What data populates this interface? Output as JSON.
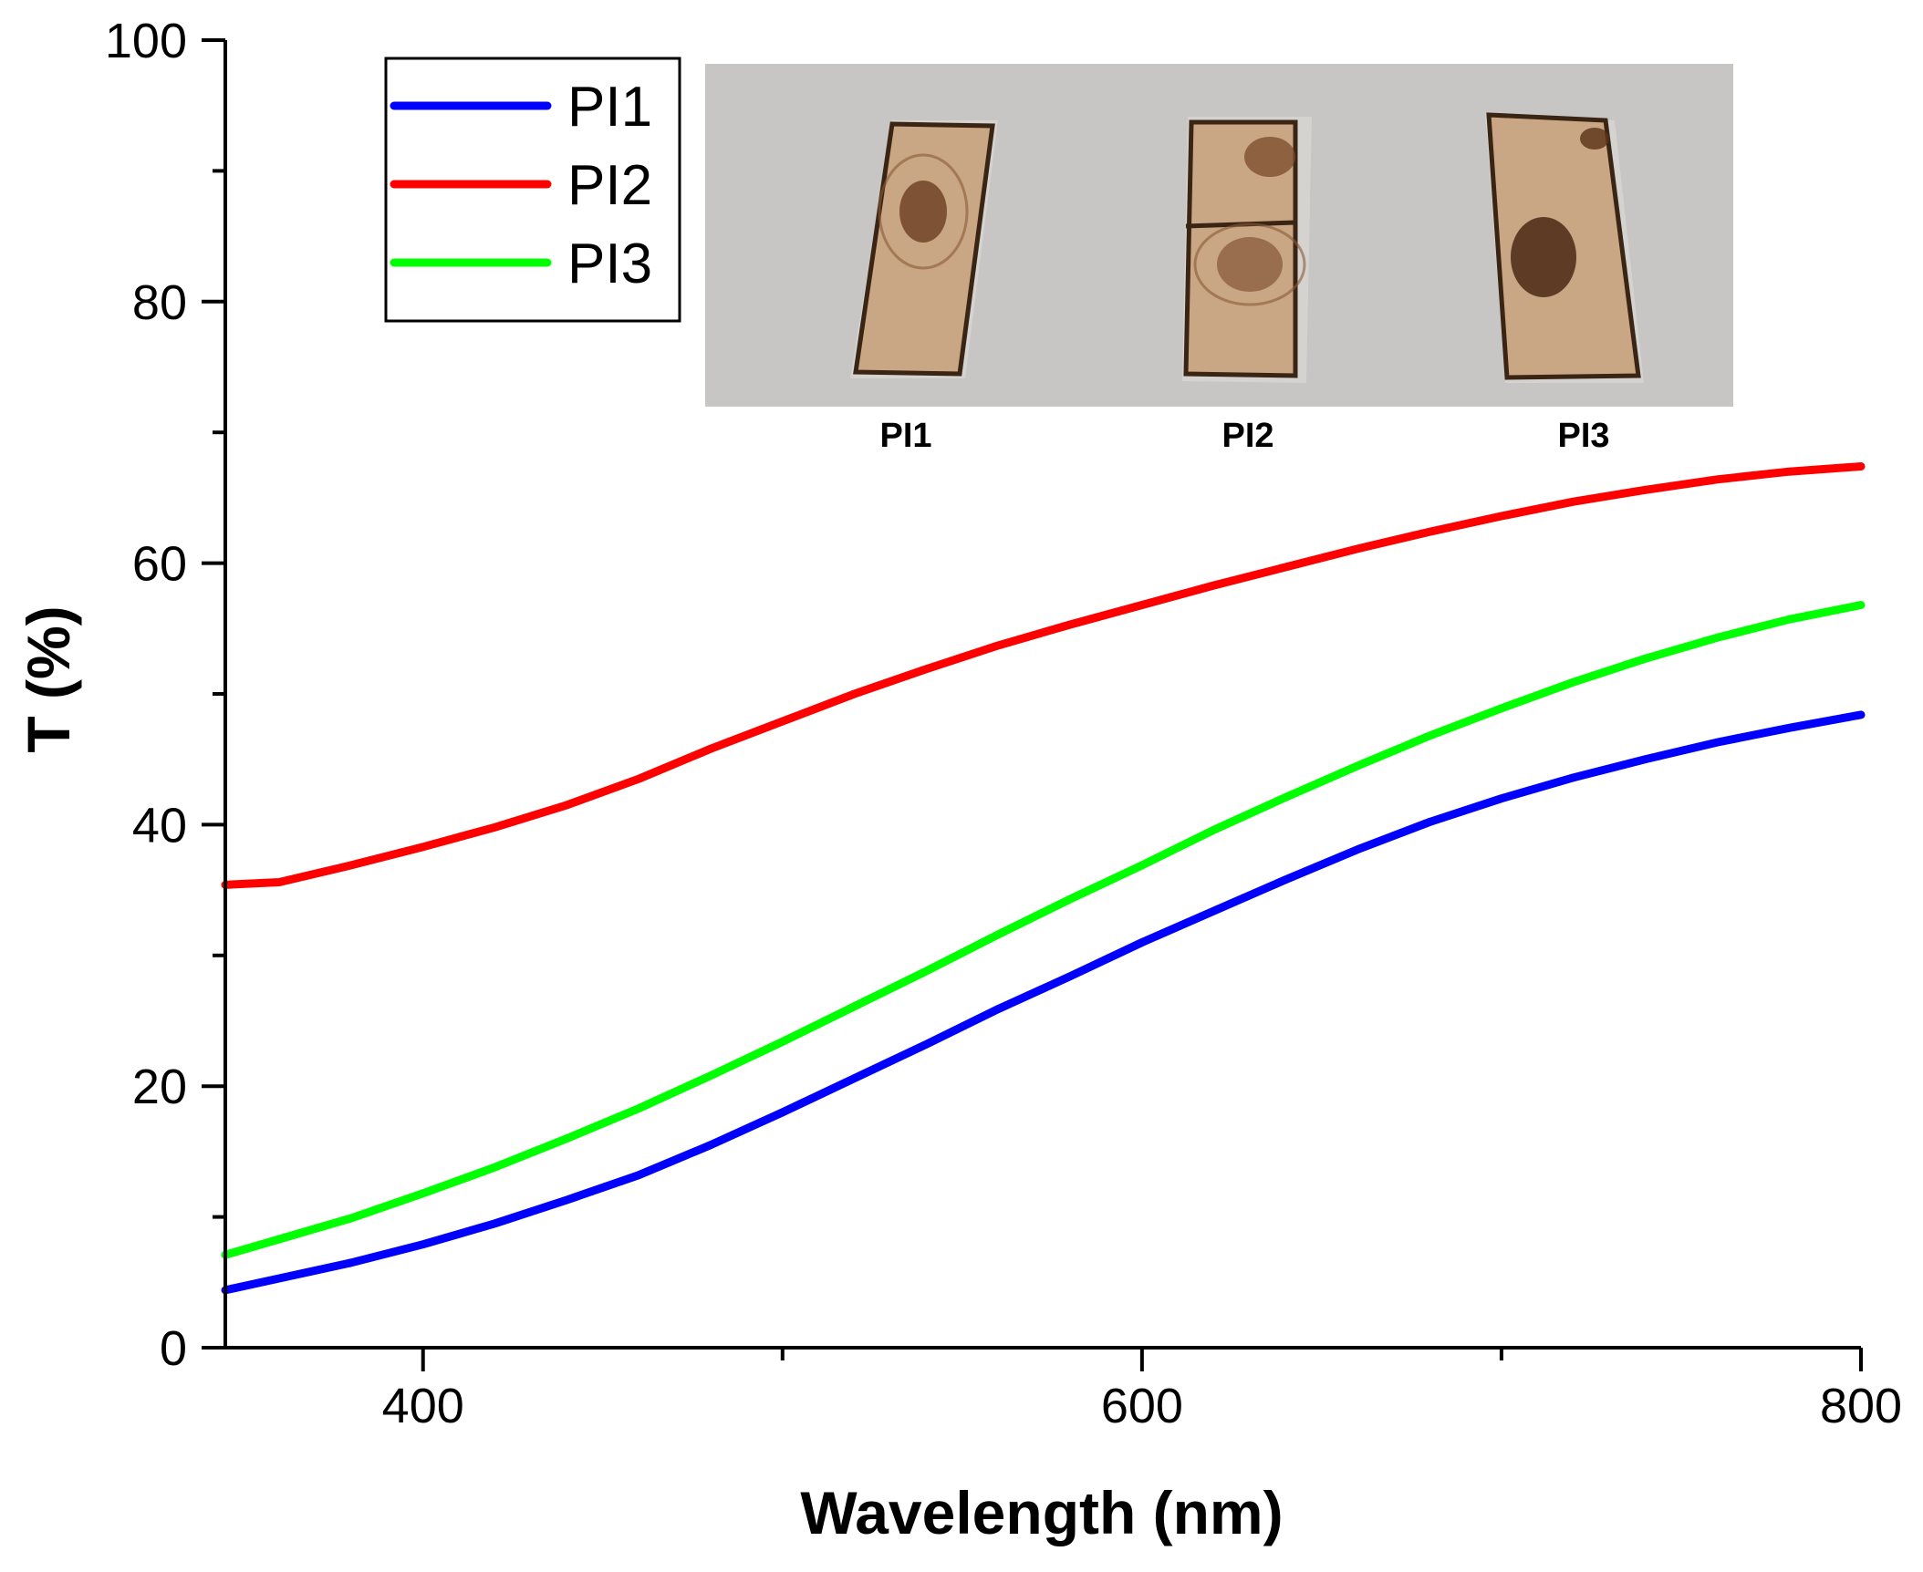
{
  "chart_data": {
    "type": "line",
    "title": "",
    "xlabel": "Wavelength (nm)",
    "ylabel": "T (%)",
    "xlim": [
      345,
      800
    ],
    "ylim": [
      0,
      100
    ],
    "x_ticks": [
      400,
      600,
      800
    ],
    "x_minor_ticks": [
      500,
      700
    ],
    "y_ticks": [
      0,
      20,
      40,
      60,
      80,
      100
    ],
    "y_minor_ticks": [
      10,
      30,
      50,
      70,
      90
    ],
    "grid": false,
    "legend_position": "top-left",
    "x": [
      345,
      360,
      380,
      400,
      420,
      440,
      460,
      480,
      500,
      520,
      540,
      560,
      580,
      600,
      620,
      640,
      660,
      680,
      700,
      720,
      740,
      760,
      780,
      800
    ],
    "series": [
      {
        "name": "PI1",
        "color": "#0000ff",
        "values": [
          4.4,
          5.3,
          6.5,
          7.9,
          9.5,
          11.3,
          13.2,
          15.5,
          18.0,
          20.6,
          23.2,
          25.9,
          28.4,
          31.0,
          33.4,
          35.8,
          38.1,
          40.2,
          42.0,
          43.6,
          45.0,
          46.3,
          47.4,
          48.4
        ]
      },
      {
        "name": "PI2",
        "color": "#ff0000",
        "values": [
          35.4,
          35.6,
          36.9,
          38.3,
          39.8,
          41.5,
          43.5,
          45.8,
          47.9,
          50.0,
          51.9,
          53.7,
          55.3,
          56.8,
          58.3,
          59.7,
          61.1,
          62.4,
          63.6,
          64.7,
          65.6,
          66.4,
          67.0,
          67.4
        ]
      },
      {
        "name": "PI3",
        "color": "#00ff00",
        "values": [
          7.1,
          8.3,
          9.9,
          11.8,
          13.8,
          16.0,
          18.3,
          20.8,
          23.4,
          26.1,
          28.8,
          31.6,
          34.3,
          36.9,
          39.6,
          42.1,
          44.5,
          46.8,
          48.9,
          50.9,
          52.7,
          54.3,
          55.7,
          56.8
        ]
      }
    ],
    "inset": {
      "description_labels": [
        "PI1",
        "PI2",
        "PI3"
      ]
    }
  },
  "colors": {
    "inset_background": "#c7c6c4",
    "film_fill": "#c9a684",
    "film_edge": "#3a2414",
    "glass": "#d6d4d2"
  }
}
